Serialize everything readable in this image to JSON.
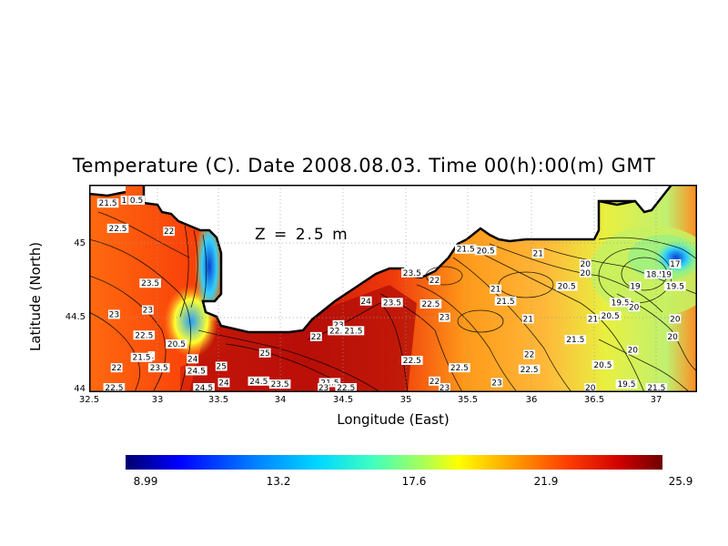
{
  "title": "Temperature (C). Date 2008.08.03. Time 00(h):00(m) GMT",
  "depth_label": "Z = 2.5 m",
  "xlabel": "Longitude (East)",
  "ylabel": "Latitude (North)",
  "x_ticks": [
    "32.5",
    "33",
    "33.5",
    "34",
    "34.5",
    "35",
    "35.5",
    "36",
    "36.5",
    "37"
  ],
  "y_ticks": [
    "45",
    "44.5",
    "44"
  ],
  "colorbar": {
    "min": 8.99,
    "max": 25.9,
    "labels": [
      "8.99",
      "13.2",
      "17.6",
      "21.9",
      "25.9"
    ]
  },
  "contour_labels": [
    {
      "lon": 32.65,
      "lat": 45.26,
      "text": "21.5"
    },
    {
      "lon": 32.78,
      "lat": 45.28,
      "text": "1"
    },
    {
      "lon": 32.88,
      "lat": 45.28,
      "text": "0.5"
    },
    {
      "lon": 32.73,
      "lat": 45.09,
      "text": "22.5"
    },
    {
      "lon": 33.14,
      "lat": 45.07,
      "text": "22"
    },
    {
      "lon": 32.99,
      "lat": 44.72,
      "text": "23.5"
    },
    {
      "lon": 32.97,
      "lat": 44.54,
      "text": "23"
    },
    {
      "lon": 32.7,
      "lat": 44.51,
      "text": "23"
    },
    {
      "lon": 32.94,
      "lat": 44.37,
      "text": "22.5"
    },
    {
      "lon": 33.15,
      "lat": 44.31,
      "text": "2"
    },
    {
      "lon": 33.2,
      "lat": 44.31,
      "text": "20.5"
    },
    {
      "lon": 33.0,
      "lat": 44.23,
      "text": "1"
    },
    {
      "lon": 32.92,
      "lat": 44.22,
      "text": "21.5"
    },
    {
      "lon": 32.72,
      "lat": 44.15,
      "text": "22"
    },
    {
      "lon": 33.06,
      "lat": 44.15,
      "text": "23.5"
    },
    {
      "lon": 33.33,
      "lat": 44.21,
      "text": "24"
    },
    {
      "lon": 33.36,
      "lat": 44.13,
      "text": "24.5"
    },
    {
      "lon": 33.56,
      "lat": 44.16,
      "text": "25"
    },
    {
      "lon": 33.58,
      "lat": 44.05,
      "text": "24"
    },
    {
      "lon": 33.91,
      "lat": 44.25,
      "text": "25"
    },
    {
      "lon": 33.86,
      "lat": 44.06,
      "text": "24.5"
    },
    {
      "lon": 34.03,
      "lat": 44.04,
      "text": "23.5"
    },
    {
      "lon": 34.32,
      "lat": 44.36,
      "text": "22"
    },
    {
      "lon": 34.5,
      "lat": 44.44,
      "text": "23"
    },
    {
      "lon": 34.5,
      "lat": 44.4,
      "text": "22.5"
    },
    {
      "lon": 34.62,
      "lat": 44.4,
      "text": "21.5"
    },
    {
      "lon": 34.72,
      "lat": 44.6,
      "text": "24"
    },
    {
      "lon": 34.93,
      "lat": 44.59,
      "text": "23.5"
    },
    {
      "lon": 35.09,
      "lat": 44.79,
      "text": "23.5"
    },
    {
      "lon": 35.27,
      "lat": 44.74,
      "text": "22"
    },
    {
      "lon": 35.24,
      "lat": 44.58,
      "text": "22.5"
    },
    {
      "lon": 35.35,
      "lat": 44.49,
      "text": "23"
    },
    {
      "lon": 35.09,
      "lat": 44.2,
      "text": "22.5"
    },
    {
      "lon": 35.47,
      "lat": 44.15,
      "text": "22.5"
    },
    {
      "lon": 35.27,
      "lat": 44.06,
      "text": "22"
    },
    {
      "lon": 35.35,
      "lat": 44.01,
      "text": "23"
    },
    {
      "lon": 35.52,
      "lat": 44.95,
      "text": "21.5"
    },
    {
      "lon": 35.68,
      "lat": 44.94,
      "text": "20.5"
    },
    {
      "lon": 36.1,
      "lat": 44.92,
      "text": "21"
    },
    {
      "lon": 35.76,
      "lat": 44.68,
      "text": "21"
    },
    {
      "lon": 35.84,
      "lat": 44.6,
      "text": "21.5"
    },
    {
      "lon": 36.02,
      "lat": 44.48,
      "text": "21"
    },
    {
      "lon": 36.03,
      "lat": 44.24,
      "text": "22"
    },
    {
      "lon": 36.03,
      "lat": 44.14,
      "text": "22.5"
    },
    {
      "lon": 35.77,
      "lat": 44.05,
      "text": "23"
    },
    {
      "lon": 36.48,
      "lat": 44.85,
      "text": "20"
    },
    {
      "lon": 36.48,
      "lat": 44.79,
      "text": "20"
    },
    {
      "lon": 36.33,
      "lat": 44.7,
      "text": "20.5"
    },
    {
      "lon": 36.88,
      "lat": 44.7,
      "text": "19"
    },
    {
      "lon": 36.76,
      "lat": 44.59,
      "text": "19.5"
    },
    {
      "lon": 36.87,
      "lat": 44.56,
      "text": "20"
    },
    {
      "lon": 36.68,
      "lat": 44.5,
      "text": "20.5"
    },
    {
      "lon": 36.54,
      "lat": 44.48,
      "text": "21"
    },
    {
      "lon": 36.4,
      "lat": 44.34,
      "text": "21.5"
    },
    {
      "lon": 36.86,
      "lat": 44.27,
      "text": "20"
    },
    {
      "lon": 36.62,
      "lat": 44.17,
      "text": "20.5"
    },
    {
      "lon": 36.81,
      "lat": 44.04,
      "text": "19.5"
    },
    {
      "lon": 36.52,
      "lat": 43.99,
      "text": "20"
    },
    {
      "lon": 37.05,
      "lat": 43.99,
      "text": "21.5"
    },
    {
      "lon": 37.04,
      "lat": 44.78,
      "text": "18.5"
    },
    {
      "lon": 37.13,
      "lat": 44.78,
      "text": "19"
    },
    {
      "lon": 37.2,
      "lat": 44.85,
      "text": "17"
    },
    {
      "lon": 37.2,
      "lat": 44.7,
      "text": "19.5"
    },
    {
      "lon": 37.2,
      "lat": 44.48,
      "text": "20"
    },
    {
      "lon": 37.18,
      "lat": 44.36,
      "text": "20"
    },
    {
      "lon": 34.43,
      "lat": 44.05,
      "text": "21.5"
    },
    {
      "lon": 34.56,
      "lat": 44.0,
      "text": "22.5"
    },
    {
      "lon": 34.38,
      "lat": 43.99,
      "text": "23"
    },
    {
      "lon": 33.42,
      "lat": 43.99,
      "text": "24.5"
    },
    {
      "lon": 32.7,
      "lat": 43.99,
      "text": "22.5"
    }
  ]
}
